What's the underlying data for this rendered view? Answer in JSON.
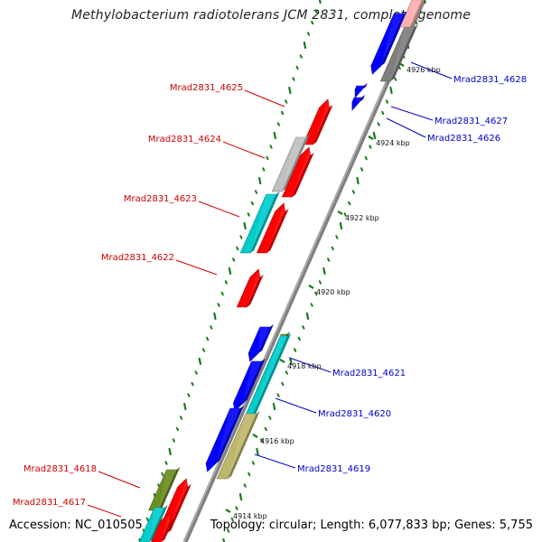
{
  "title": "Methylobacterium radiotolerans JCM 2831, complete genome",
  "accession": "Accession: NC_010505",
  "topology": "Topology: circular; Length: 6,077,833 bp; Genes: 5,755",
  "colors": {
    "forward_label": "#cc0000",
    "reverse_label": "#0000cc",
    "backbone": "#808080",
    "ticks": "#1a7a1a",
    "red": "#ff0000",
    "blue": "#0000ff",
    "cyan": "#00cccc",
    "olive": "#6b8e23",
    "khaki": "#bdb76b",
    "silver": "#c0c0c0",
    "gray": "#7f7f7f",
    "pink": "#ffb0b0"
  },
  "scale_labels": [
    "4926 kbp",
    "4924 kbp",
    "4922 kbp",
    "4920 kbp",
    "4918 kbp",
    "4916 kbp",
    "4914 kbp"
  ],
  "genes_left": [
    "Mrad2831_4625",
    "Mrad2831_4624",
    "Mrad2831_4623",
    "Mrad2831_4622",
    "Mrad2831_4618",
    "Mrad2831_4617"
  ],
  "genes_right": [
    "Mrad2831_4628",
    "Mrad2831_4627",
    "Mrad2831_4626",
    "Mrad2831_4621",
    "Mrad2831_4620",
    "Mrad2831_4619"
  ]
}
